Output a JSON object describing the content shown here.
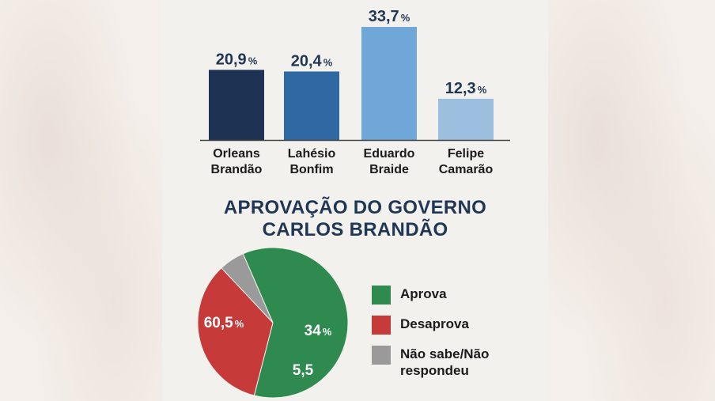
{
  "chart_data": [
    {
      "type": "bar",
      "categories": [
        [
          "Orleans",
          "Brandão"
        ],
        [
          "Lahésio",
          "Bonfim"
        ],
        [
          "Eduardo",
          "Braide"
        ],
        [
          "Felipe",
          "Camarão"
        ]
      ],
      "values": [
        20.9,
        20.4,
        33.7,
        12.3
      ],
      "value_labels": [
        "20,9",
        "20,4",
        "33,7",
        "12,3"
      ],
      "unit": "%",
      "colors": [
        "#1e3354",
        "#2f68a3",
        "#6fa7d8",
        "#9dbfdf"
      ],
      "ylim": [
        0,
        33.7
      ]
    },
    {
      "type": "pie",
      "title_lines": [
        "APROVAÇÃO DO GOVERNO",
        "CARLOS BRANDÃO"
      ],
      "slices": [
        {
          "label": "Aprova",
          "value": 60.5,
          "value_label": "60,5",
          "unit": "%",
          "color": "#2e8a4e"
        },
        {
          "label": "Desaprova",
          "value": 34,
          "value_label": "34",
          "unit": "%",
          "color": "#c73a3a"
        },
        {
          "label": "Não sabe/Não respondeu",
          "value": 5.5,
          "value_label": "5,5",
          "unit": "",
          "color": "#9a9a9a"
        }
      ]
    }
  ],
  "legend": [
    {
      "lines": [
        "Aprova"
      ],
      "color": "#2e8a4e"
    },
    {
      "lines": [
        "Desaprova"
      ],
      "color": "#c73a3a"
    },
    {
      "lines": [
        "Não sabe/Não",
        "respondeu"
      ],
      "color": "#9a9a9a"
    }
  ]
}
